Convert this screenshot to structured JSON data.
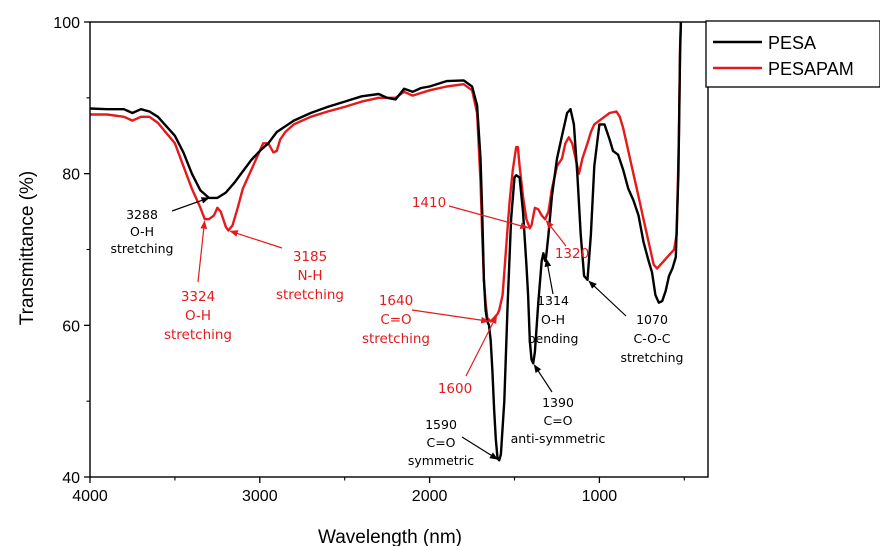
{
  "chart_data": {
    "type": "line",
    "title": "",
    "xlabel": "Wavelength (nm)",
    "ylabel": "Transmittance (%)",
    "xlim": [
      4000,
      350
    ],
    "ylim": [
      40,
      100
    ],
    "x_reversed": true,
    "x_ticks": [
      "4000",
      "3000",
      "2000",
      "1000"
    ],
    "x_tick_values": [
      4000,
      3000,
      2000,
      1000
    ],
    "y_ticks": [
      "40",
      "60",
      "80",
      "100"
    ],
    "y_tick_values": [
      40,
      60,
      80,
      100
    ],
    "legend_position": "top-right",
    "grid": false,
    "series": [
      {
        "name": "PESA",
        "color": "#000000",
        "points": [
          [
            4000,
            88.6
          ],
          [
            3900,
            88.5
          ],
          [
            3800,
            88.5
          ],
          [
            3750,
            88.0
          ],
          [
            3700,
            88.5
          ],
          [
            3650,
            88.2
          ],
          [
            3600,
            87.5
          ],
          [
            3500,
            85.0
          ],
          [
            3450,
            82.8
          ],
          [
            3400,
            80.0
          ],
          [
            3350,
            77.8
          ],
          [
            3300,
            76.8
          ],
          [
            3250,
            76.8
          ],
          [
            3200,
            77.5
          ],
          [
            3150,
            78.8
          ],
          [
            3100,
            80.3
          ],
          [
            3050,
            81.8
          ],
          [
            3000,
            83.0
          ],
          [
            2950,
            84.0
          ],
          [
            2900,
            85.5
          ],
          [
            2800,
            87.0
          ],
          [
            2700,
            88.0
          ],
          [
            2600,
            88.8
          ],
          [
            2500,
            89.5
          ],
          [
            2400,
            90.2
          ],
          [
            2300,
            90.5
          ],
          [
            2250,
            90.0
          ],
          [
            2200,
            89.8
          ],
          [
            2150,
            91.2
          ],
          [
            2100,
            90.8
          ],
          [
            2050,
            91.3
          ],
          [
            2000,
            91.5
          ],
          [
            1900,
            92.2
          ],
          [
            1800,
            92.3
          ],
          [
            1750,
            91.5
          ],
          [
            1720,
            89.0
          ],
          [
            1700,
            82.0
          ],
          [
            1690,
            75.0
          ],
          [
            1680,
            66.0
          ],
          [
            1670,
            62.0
          ],
          [
            1660,
            60.5
          ],
          [
            1650,
            60.0
          ],
          [
            1640,
            58.0
          ],
          [
            1630,
            54.0
          ],
          [
            1620,
            49.0
          ],
          [
            1610,
            45.0
          ],
          [
            1600,
            42.5
          ],
          [
            1590,
            42.2
          ],
          [
            1580,
            43.0
          ],
          [
            1560,
            50.0
          ],
          [
            1540,
            63.0
          ],
          [
            1520,
            74.0
          ],
          [
            1500,
            79.5
          ],
          [
            1490,
            79.8
          ],
          [
            1470,
            79.5
          ],
          [
            1450,
            75.0
          ],
          [
            1430,
            68.0
          ],
          [
            1420,
            64.0
          ],
          [
            1410,
            58.0
          ],
          [
            1400,
            55.5
          ],
          [
            1390,
            55.0
          ],
          [
            1380,
            56.5
          ],
          [
            1360,
            63.0
          ],
          [
            1340,
            68.5
          ],
          [
            1330,
            69.5
          ],
          [
            1320,
            68.5
          ],
          [
            1314,
            69.0
          ],
          [
            1300,
            72.0
          ],
          [
            1280,
            77.0
          ],
          [
            1250,
            82.0
          ],
          [
            1220,
            85.0
          ],
          [
            1190,
            88.0
          ],
          [
            1170,
            88.5
          ],
          [
            1150,
            86.5
          ],
          [
            1130,
            80.0
          ],
          [
            1110,
            72.0
          ],
          [
            1090,
            66.5
          ],
          [
            1070,
            66.0
          ],
          [
            1050,
            72.0
          ],
          [
            1030,
            81.0
          ],
          [
            1000,
            86.5
          ],
          [
            970,
            86.5
          ],
          [
            940,
            84.5
          ],
          [
            920,
            83.0
          ],
          [
            890,
            82.5
          ],
          [
            860,
            80.5
          ],
          [
            830,
            78.0
          ],
          [
            800,
            76.5
          ],
          [
            770,
            74.5
          ],
          [
            740,
            71.0
          ],
          [
            710,
            68.5
          ],
          [
            690,
            67.0
          ],
          [
            670,
            64.0
          ],
          [
            650,
            63.0
          ],
          [
            630,
            63.2
          ],
          [
            610,
            64.5
          ],
          [
            590,
            66.5
          ],
          [
            570,
            67.5
          ],
          [
            550,
            69.0
          ],
          [
            535,
            80.0
          ],
          [
            525,
            96.0
          ],
          [
            520,
            100.0
          ]
        ]
      },
      {
        "name": "PESAPAM",
        "color": "#e41a1c",
        "points": [
          [
            4000,
            87.8
          ],
          [
            3900,
            87.8
          ],
          [
            3800,
            87.5
          ],
          [
            3750,
            87.0
          ],
          [
            3700,
            87.5
          ],
          [
            3650,
            87.5
          ],
          [
            3600,
            86.7
          ],
          [
            3500,
            84.0
          ],
          [
            3450,
            81.0
          ],
          [
            3400,
            78.0
          ],
          [
            3350,
            75.5
          ],
          [
            3324,
            74.0
          ],
          [
            3300,
            74.0
          ],
          [
            3270,
            74.5
          ],
          [
            3250,
            75.5
          ],
          [
            3230,
            75.0
          ],
          [
            3200,
            73.0
          ],
          [
            3185,
            72.5
          ],
          [
            3160,
            73.2
          ],
          [
            3130,
            75.5
          ],
          [
            3100,
            78.0
          ],
          [
            3050,
            80.5
          ],
          [
            3000,
            83.0
          ],
          [
            2980,
            84.0
          ],
          [
            2950,
            84.0
          ],
          [
            2920,
            82.8
          ],
          [
            2900,
            83.0
          ],
          [
            2880,
            84.5
          ],
          [
            2850,
            85.5
          ],
          [
            2800,
            86.5
          ],
          [
            2700,
            87.5
          ],
          [
            2600,
            88.2
          ],
          [
            2500,
            88.8
          ],
          [
            2400,
            89.5
          ],
          [
            2300,
            90.0
          ],
          [
            2200,
            90.0
          ],
          [
            2150,
            90.8
          ],
          [
            2100,
            90.3
          ],
          [
            2000,
            91.0
          ],
          [
            1900,
            91.5
          ],
          [
            1800,
            91.8
          ],
          [
            1750,
            91.0
          ],
          [
            1720,
            88.0
          ],
          [
            1700,
            79.0
          ],
          [
            1690,
            72.0
          ],
          [
            1680,
            66.0
          ],
          [
            1670,
            63.0
          ],
          [
            1660,
            61.0
          ],
          [
            1640,
            60.5
          ],
          [
            1620,
            61.0
          ],
          [
            1600,
            61.5
          ],
          [
            1590,
            62.0
          ],
          [
            1570,
            64.0
          ],
          [
            1550,
            70.0
          ],
          [
            1530,
            76.0
          ],
          [
            1510,
            80.5
          ],
          [
            1490,
            83.5
          ],
          [
            1480,
            83.5
          ],
          [
            1470,
            81.0
          ],
          [
            1450,
            77.0
          ],
          [
            1430,
            74.0
          ],
          [
            1410,
            72.8
          ],
          [
            1400,
            73.2
          ],
          [
            1380,
            75.5
          ],
          [
            1360,
            75.3
          ],
          [
            1340,
            74.5
          ],
          [
            1320,
            74.0
          ],
          [
            1300,
            75.0
          ],
          [
            1280,
            78.0
          ],
          [
            1250,
            81.0
          ],
          [
            1220,
            82.0
          ],
          [
            1200,
            84.0
          ],
          [
            1180,
            84.8
          ],
          [
            1160,
            84.0
          ],
          [
            1140,
            82.0
          ],
          [
            1120,
            80.0
          ],
          [
            1100,
            82.0
          ],
          [
            1070,
            84.0
          ],
          [
            1050,
            85.5
          ],
          [
            1030,
            86.5
          ],
          [
            1000,
            87.0
          ],
          [
            970,
            87.5
          ],
          [
            940,
            88.0
          ],
          [
            900,
            88.2
          ],
          [
            880,
            87.5
          ],
          [
            860,
            86.0
          ],
          [
            840,
            84.0
          ],
          [
            820,
            82.0
          ],
          [
            800,
            80.0
          ],
          [
            780,
            78.0
          ],
          [
            760,
            76.0
          ],
          [
            740,
            74.0
          ],
          [
            720,
            72.0
          ],
          [
            700,
            70.0
          ],
          [
            680,
            68.0
          ],
          [
            660,
            67.5
          ],
          [
            640,
            68.0
          ],
          [
            620,
            68.5
          ],
          [
            600,
            69.0
          ],
          [
            580,
            69.5
          ],
          [
            560,
            70.0
          ],
          [
            545,
            72.0
          ],
          [
            532,
            85.0
          ],
          [
            525,
            97.0
          ],
          [
            520,
            100.0
          ]
        ]
      }
    ],
    "annotations": [
      {
        "lines": [
          "3288",
          "O-H",
          "stretching"
        ],
        "color": "#000000",
        "x": 3288,
        "y": 76.9
      },
      {
        "lines": [
          "3324",
          "O-H",
          "stretching"
        ],
        "color": "#e41a1c",
        "x": 3324,
        "y": 74.0
      },
      {
        "lines": [
          "3185",
          "N-H",
          "stretching"
        ],
        "color": "#e41a1c",
        "x": 3185,
        "y": 72.5
      },
      {
        "lines": [
          "1410"
        ],
        "color": "#e41a1c",
        "x": 1410,
        "y": 72.8
      },
      {
        "lines": [
          "1320"
        ],
        "color": "#e41a1c",
        "x": 1320,
        "y": 74.0
      },
      {
        "lines": [
          "1640",
          "C=O",
          "stretching"
        ],
        "color": "#e41a1c",
        "x": 1640,
        "y": 60.5
      },
      {
        "lines": [
          "1600"
        ],
        "color": "#e41a1c",
        "x": 1600,
        "y": 61.5
      },
      {
        "lines": [
          "1314",
          "O-H",
          "bending"
        ],
        "color": "#000000",
        "x": 1314,
        "y": 69.0
      },
      {
        "lines": [
          "1070",
          "C-O-C",
          "stretching"
        ],
        "color": "#000000",
        "x": 1070,
        "y": 66.0
      },
      {
        "lines": [
          "1390",
          "C=O",
          "anti-symmetric"
        ],
        "color": "#000000",
        "x": 1390,
        "y": 55.0
      },
      {
        "lines": [
          "1590",
          "C=O",
          "symmetric"
        ],
        "color": "#000000",
        "x": 1590,
        "y": 42.2
      }
    ]
  }
}
